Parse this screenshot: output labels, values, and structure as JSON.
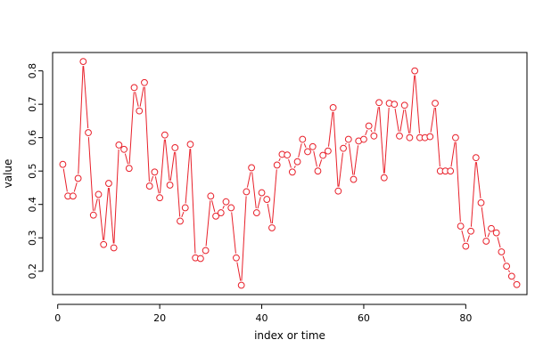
{
  "chart_data": {
    "type": "line",
    "xlabel": "index or time",
    "ylabel": "value",
    "xlim": [
      -1,
      92
    ],
    "ylim": [
      0.13,
      0.855
    ],
    "xticks": [
      0,
      20,
      40,
      60,
      80
    ],
    "yticks": [
      0.2,
      0.3,
      0.4,
      0.5,
      0.6,
      0.7,
      0.8
    ],
    "grid": false,
    "series_color": "#e8202a",
    "series": [
      {
        "x": [
          1,
          2,
          3,
          4,
          5,
          6,
          7,
          8,
          9,
          10,
          11,
          12,
          13,
          14,
          15,
          16,
          17,
          18,
          19,
          20,
          21,
          22,
          23,
          24,
          25,
          26,
          27,
          28,
          29,
          30,
          31,
          32,
          33,
          34,
          35,
          36,
          37,
          38,
          39,
          40,
          41,
          42,
          43,
          44,
          45,
          46,
          47,
          48,
          49,
          50,
          51,
          52,
          53,
          54,
          55,
          56,
          57,
          58,
          59,
          60,
          61,
          62,
          63,
          64,
          65,
          66,
          67,
          68,
          69,
          70,
          71,
          72,
          73,
          74,
          75,
          76,
          77,
          78,
          79,
          80,
          81,
          82,
          83,
          84,
          85,
          86,
          87,
          88,
          89,
          90
        ],
        "values": [
          0.52,
          0.425,
          0.425,
          0.478,
          0.828,
          0.615,
          0.368,
          0.43,
          0.28,
          0.463,
          0.27,
          0.578,
          0.565,
          0.508,
          0.75,
          0.68,
          0.765,
          0.455,
          0.497,
          0.42,
          0.608,
          0.458,
          0.57,
          0.35,
          0.39,
          0.58,
          0.24,
          0.238,
          0.262,
          0.425,
          0.365,
          0.375,
          0.408,
          0.39,
          0.24,
          0.158,
          0.438,
          0.51,
          0.375,
          0.435,
          0.415,
          0.33,
          0.518,
          0.55,
          0.548,
          0.497,
          0.528,
          0.595,
          0.558,
          0.573,
          0.5,
          0.547,
          0.56,
          0.69,
          0.44,
          0.568,
          0.595,
          0.475,
          0.59,
          0.595,
          0.635,
          0.605,
          0.705,
          0.48,
          0.703,
          0.7,
          0.605,
          0.697,
          0.6,
          0.8,
          0.6,
          0.6,
          0.603,
          0.703,
          0.5,
          0.5,
          0.5,
          0.6,
          0.335,
          0.275,
          0.32,
          0.54,
          0.405,
          0.29,
          0.328,
          0.315,
          0.258,
          0.215,
          0.185,
          0.16
        ]
      }
    ]
  }
}
